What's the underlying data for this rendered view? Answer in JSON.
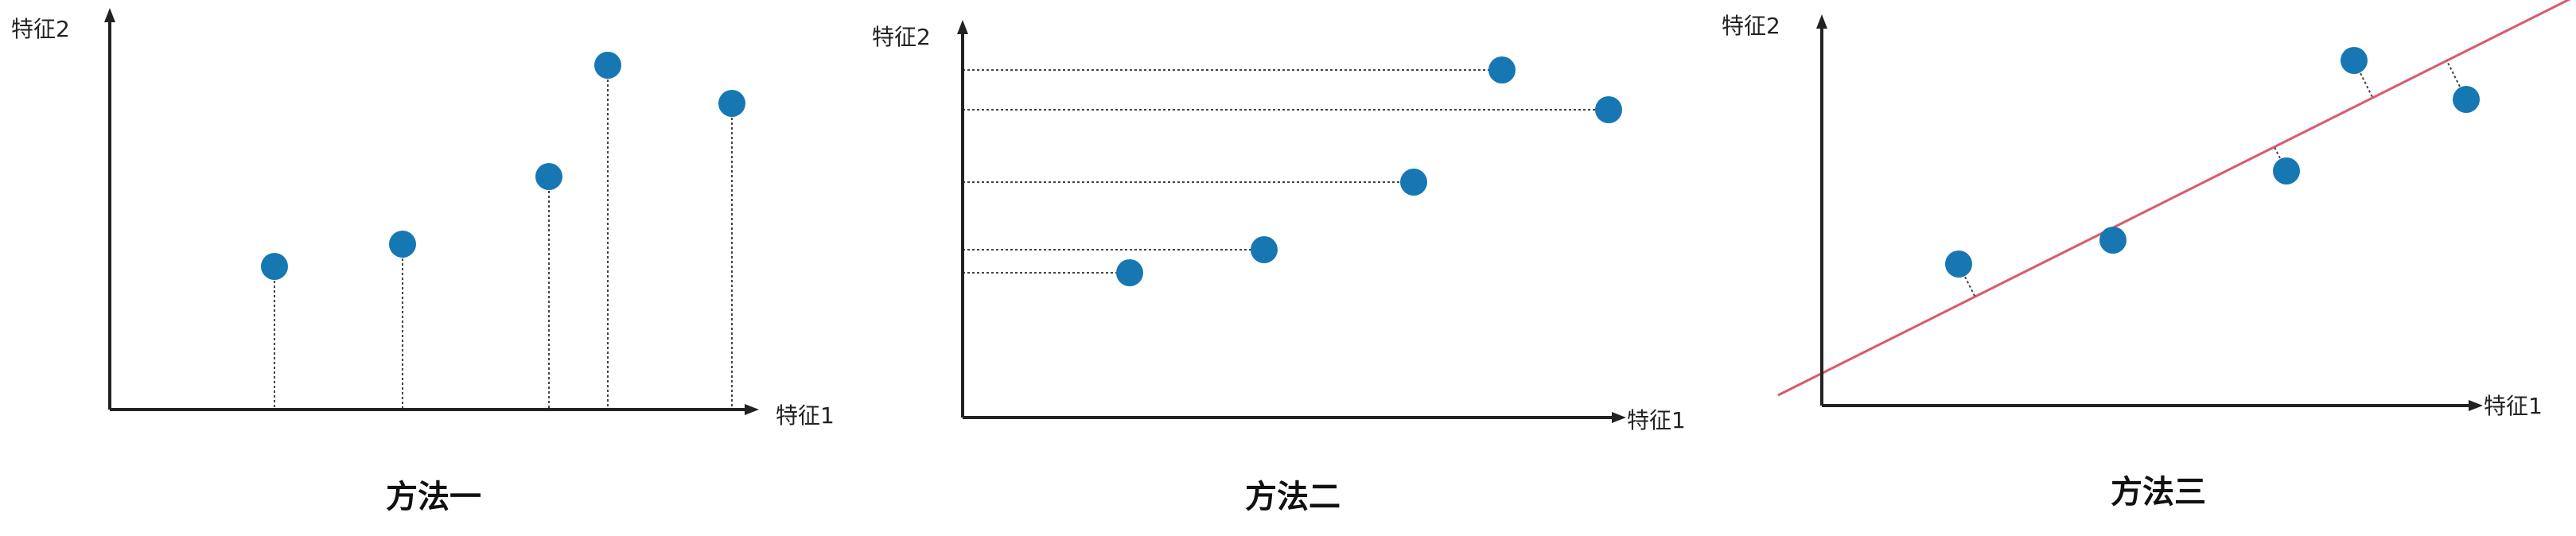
{
  "point_color": "#1677b3",
  "line_color": "#d9596e",
  "panels": [
    {
      "x_label": "特征1",
      "y_label": "特征2",
      "caption": "方法一",
      "projection": "vertical",
      "points": [
        [
          1,
          2.5
        ],
        [
          2,
          2.8
        ],
        [
          3,
          3.8
        ],
        [
          3.4,
          5.1
        ],
        [
          4.2,
          4.6
        ]
      ]
    },
    {
      "x_label": "特征1",
      "y_label": "特征2",
      "caption": "方法二",
      "projection": "horizontal",
      "points": [
        [
          1.2,
          1.6
        ],
        [
          2.2,
          1.9
        ],
        [
          3.2,
          2.7
        ],
        [
          3.7,
          3.6
        ],
        [
          4.4,
          3.1
        ]
      ]
    },
    {
      "x_label": "特征1",
      "y_label": "特征2",
      "caption": "方法三",
      "projection": "perpendicular",
      "points": [
        [
          1.2,
          2.0
        ],
        [
          2.1,
          2.4
        ],
        [
          3.2,
          3.2
        ],
        [
          3.6,
          4.4
        ],
        [
          4.3,
          3.8
        ]
      ]
    }
  ]
}
